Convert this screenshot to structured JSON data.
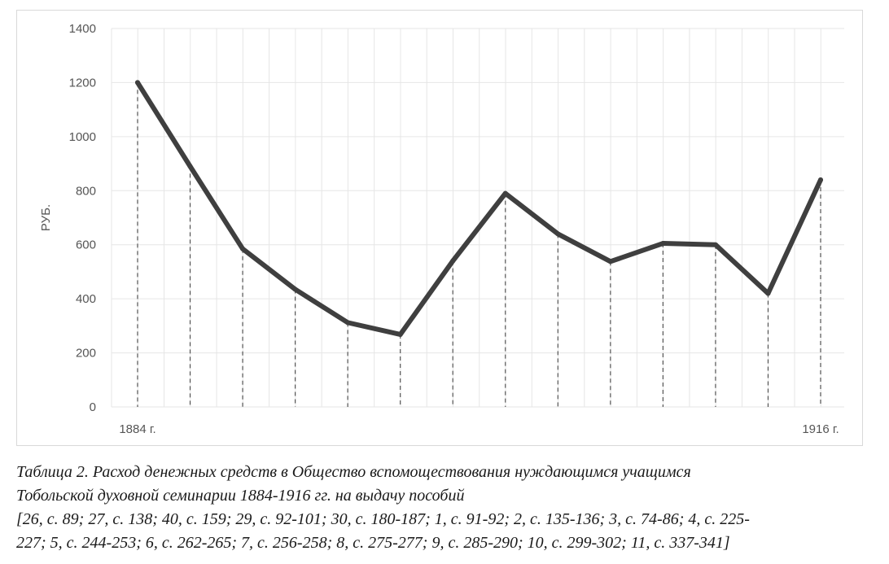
{
  "chart_data": {
    "type": "line",
    "x_start_label": "1884 г.",
    "x_end_label": "1916 г.",
    "ylabel": "РУБ.",
    "ylim": [
      0,
      1400
    ],
    "yticks": [
      0,
      200,
      400,
      600,
      800,
      1000,
      1200,
      1400
    ],
    "grid": true,
    "series": [
      {
        "values": [
          1200,
          890,
          585,
          435,
          312,
          268,
          540,
          790,
          640,
          538,
          605,
          600,
          420,
          840
        ]
      }
    ],
    "colors": {
      "line": "#3f3f3f",
      "grid": "#e6e6e6",
      "drop_line": "#555555"
    }
  },
  "caption": {
    "title_line1": "Таблица 2. Расход денежных средств в Общество вспомоществования нуждающимся учащимся",
    "title_line2": "Тобольской духовной семинарии 1884-1916 гг. на выдачу пособий",
    "refs_line1": "[26, с. 89; 27, с. 138; 40, с. 159; 29, с. 92-101; 30, с. 180-187; 1, с. 91-92; 2, с. 135-136; 3, с. 74-86; 4, с. 225-",
    "refs_line2": "227; 5, с. 244-253; 6, с. 262-265; 7, с. 256-258; 8, с. 275-277; 9, с. 285-290; 10, с. 299-302; 11, с. 337-341]"
  }
}
